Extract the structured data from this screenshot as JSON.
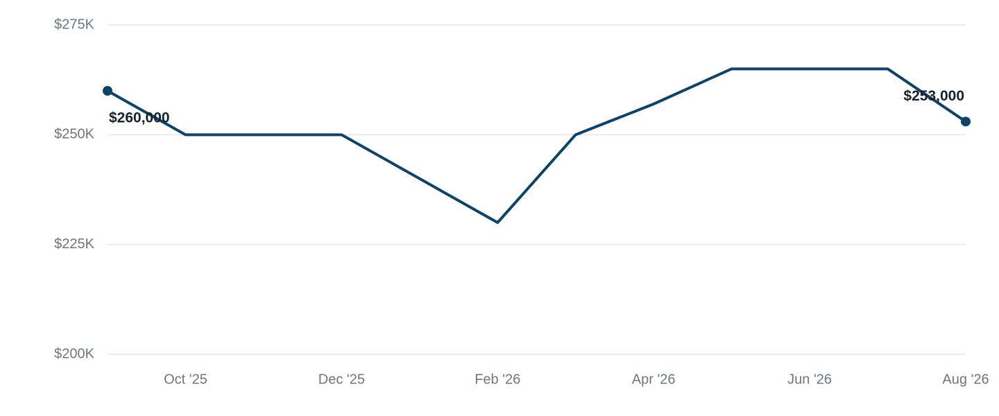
{
  "chart_data": {
    "type": "line",
    "categories": [
      null,
      "Oct '25",
      null,
      "Dec '25",
      null,
      "Feb '26",
      null,
      "Apr '26",
      null,
      "Jun '26",
      null,
      "Aug '26"
    ],
    "series": [
      {
        "name": null,
        "color": "#0b4468",
        "values": [
          260000,
          250000,
          250000,
          250000,
          240000,
          230000,
          250000,
          257000,
          265000,
          265000,
          265000,
          253000
        ],
        "value_labels": [
          "$260,000",
          null,
          null,
          null,
          null,
          null,
          null,
          null,
          null,
          null,
          null,
          "$253,000"
        ]
      }
    ],
    "ylim": [
      200000,
      275000
    ],
    "yticks": [
      {
        "value": 200000,
        "label": "$200K"
      },
      {
        "value": 225000,
        "label": "$225K"
      },
      {
        "value": 250000,
        "label": "$250K"
      },
      {
        "value": 275000,
        "label": "$275K"
      }
    ],
    "grid": true
  }
}
